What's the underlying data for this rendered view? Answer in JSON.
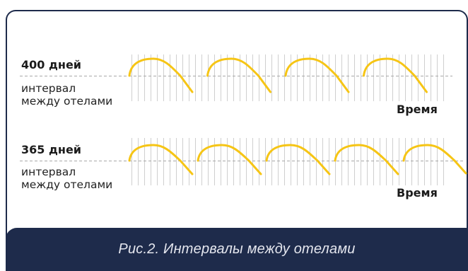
{
  "colors": {
    "frame": "#1e2b4b",
    "curve": "#f6c515",
    "grid": "#cfcfcf",
    "baseline": "#a8a8a8",
    "caption_text": "#e4e6ee"
  },
  "rows": [
    {
      "interval": "400 дней",
      "desc_line1": "интервал",
      "desc_line2": "между отелами",
      "axis_label": "Время",
      "curve_count": 4
    },
    {
      "interval": "365 дней",
      "desc_line1": "интервал",
      "desc_line2": "между отелами",
      "axis_label": "Время",
      "curve_count": 5
    }
  ],
  "caption": "Рис.2. Интервалы между отелами"
}
